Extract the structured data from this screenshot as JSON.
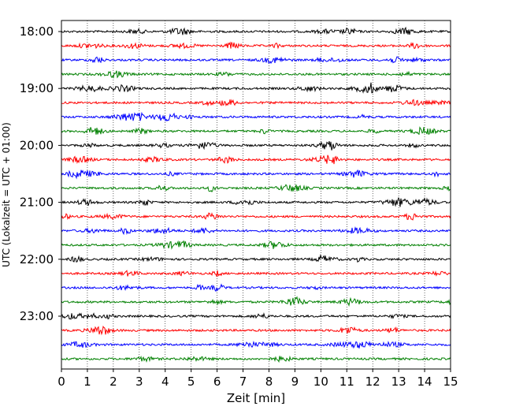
{
  "chart_data": {
    "type": "line",
    "title": "",
    "xlabel": "Zeit  [min]",
    "ylabel": "UTC (Lokalzeit = UTC + 01:00)",
    "xlim": [
      0,
      15
    ],
    "x_ticks": [
      "0",
      "1",
      "2",
      "3",
      "4",
      "5",
      "6",
      "7",
      "8",
      "9",
      "10",
      "11",
      "12",
      "13",
      "14",
      "15"
    ],
    "y_tick_labels": [
      "18:00",
      "19:00",
      "20:00",
      "21:00",
      "22:00",
      "23:00"
    ],
    "trace_interval_min": 15,
    "trace_count": 24,
    "first_trace": "18:00",
    "last_trace": "23:45",
    "trace_colors": [
      "#000000",
      "#ff0000",
      "#0000ff",
      "#008000"
    ],
    "grid": {
      "vertical": "dotted"
    },
    "legend": "none"
  }
}
